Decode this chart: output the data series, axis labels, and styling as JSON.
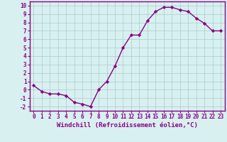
{
  "x": [
    0,
    1,
    2,
    3,
    4,
    5,
    6,
    7,
    8,
    9,
    10,
    11,
    12,
    13,
    14,
    15,
    16,
    17,
    18,
    19,
    20,
    21,
    22,
    23
  ],
  "y": [
    0.5,
    -0.2,
    -0.5,
    -0.5,
    -0.7,
    -1.5,
    -1.7,
    -2.0,
    0.0,
    1.0,
    2.8,
    5.0,
    6.5,
    6.5,
    8.2,
    9.3,
    9.8,
    9.8,
    9.5,
    9.3,
    8.5,
    7.9,
    7.0,
    7.0
  ],
  "line_color": "#880088",
  "marker": "D",
  "marker_size": 2.2,
  "line_width": 1.0,
  "bg_color": "#d8f0f0",
  "grid_color": "#aacccc",
  "xlabel": "Windchill (Refroidissement éolien,°C)",
  "xlabel_fontsize": 6.5,
  "ylim": [
    -2.5,
    10.5
  ],
  "xlim": [
    -0.5,
    23.5
  ],
  "xtick_fontsize": 5.5,
  "ytick_fontsize": 5.5,
  "tick_color": "#880088",
  "label_color": "#880088",
  "spine_color": "#880088"
}
